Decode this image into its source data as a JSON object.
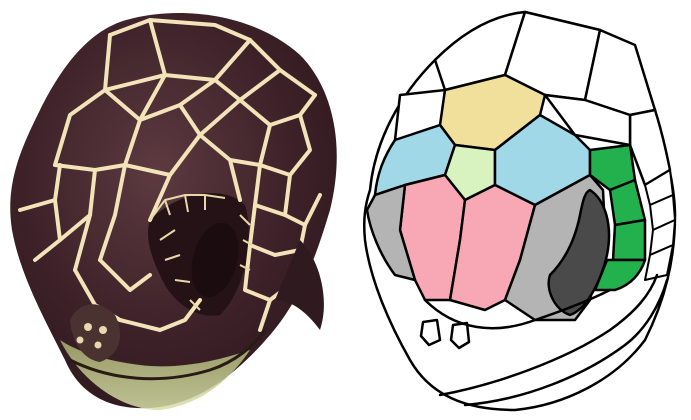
{
  "figure": {
    "photo": {
      "subject": "turtle-head-photo",
      "colors": {
        "skin_dark": "#3a1f26",
        "skin_mid": "#5a3a3f",
        "seams": "#f2e3b8",
        "throat": "#c8d39a",
        "beak": "#5a4a34"
      }
    },
    "diagram": {
      "subject": "turtle-head-scale-diagram",
      "colors": {
        "outline": "#000000",
        "frontoparietal": "#f1e09b",
        "frontal": "#d8f2c0",
        "supraocular": "#a0d8e8",
        "prefrontal": "#f7a8b4",
        "postocular": "#b4b4b4",
        "eye": "#4a4a4a",
        "temporal": "#22b14c",
        "unscaled": "#ffffff"
      }
    }
  }
}
